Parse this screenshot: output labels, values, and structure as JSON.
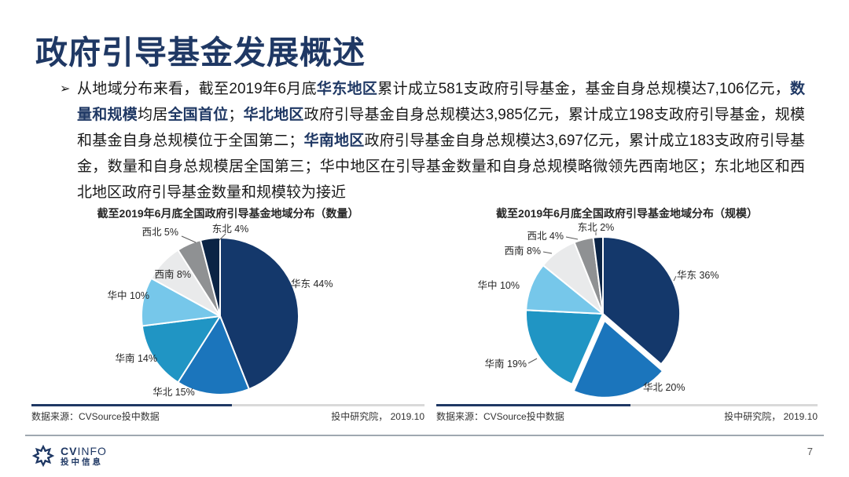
{
  "page": {
    "title": "政府引导基金发展概述",
    "page_number": "7"
  },
  "paragraph": {
    "bullet": "➢",
    "runs": [
      {
        "text": "从地域分布来看，截至2019年6月底",
        "bold": false
      },
      {
        "text": "华东地区",
        "bold": true
      },
      {
        "text": "累计成立581支政府引导基金，基金自身总规模达7,106亿元，",
        "bold": false
      },
      {
        "text": "数量和规模",
        "bold": true
      },
      {
        "text": "均居",
        "bold": false
      },
      {
        "text": "全国首位",
        "bold": true
      },
      {
        "text": "；",
        "bold": false
      },
      {
        "text": "华北地区",
        "bold": true
      },
      {
        "text": "政府引导基金自身总规模达3,985亿元，累计成立198支政府引导基金，规模和基金自身总规模位于全国第二；",
        "bold": false
      },
      {
        "text": "华南地区",
        "bold": true
      },
      {
        "text": "政府引导基金自身总规模达3,697亿元，累计成立183支政府引导基金，数量和自身总规模居全国第三；华中地区在引导基金数量和自身总规模略微领先西南地区；东北地区和西北地区政府引导基金数量和规模较为接近",
        "bold": false
      }
    ]
  },
  "chart_data": [
    {
      "type": "pie",
      "title": "截至2019年6月底全国政府引导基金地域分布（数量）",
      "categories": [
        "华东",
        "华北",
        "华南",
        "华中",
        "西南",
        "西北",
        "东北"
      ],
      "values": [
        44,
        15,
        14,
        10,
        8,
        5,
        4
      ],
      "unit": "%",
      "colors": [
        "#14386B",
        "#1B75BC",
        "#2095C4",
        "#76C7EA",
        "#E9EAEB",
        "#8F9193",
        "#0B2445"
      ],
      "start_angle": "top, clockwise",
      "exploded_slice": null,
      "source_left": "数据来源：CVSource投中数据",
      "source_right": "投中研究院， 2019.10"
    },
    {
      "type": "pie",
      "title": "截至2019年6月底全国政府引导基金地域分布（规模）",
      "categories": [
        "华东",
        "华北",
        "华南",
        "华中",
        "西南",
        "西北",
        "东北"
      ],
      "values": [
        36,
        20,
        19,
        10,
        8,
        4,
        2
      ],
      "unit": "%",
      "colors": [
        "#14386B",
        "#1B75BC",
        "#2095C4",
        "#76C7EA",
        "#E9EAEB",
        "#8F9193",
        "#0B2445"
      ],
      "start_angle": "top, clockwise",
      "exploded_slice": "华北",
      "source_left": "数据来源：CVSource投中数据",
      "source_right": "投中研究院， 2019.10"
    }
  ],
  "footer": {
    "brand_cv": "CV",
    "brand_info": "INFO",
    "brand_cn": "投中信息",
    "page_number": "7"
  },
  "colors": {
    "accent_navy": "#1F3864",
    "bar_gray": "#D9D9D9",
    "divider_gray": "#9FA8B0"
  }
}
